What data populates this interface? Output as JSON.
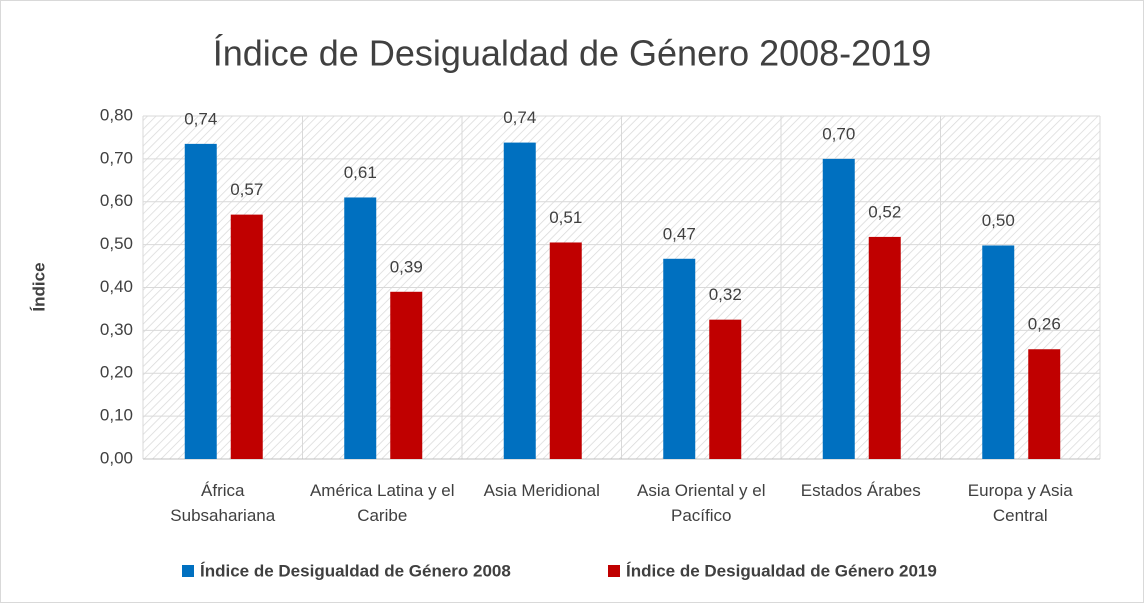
{
  "chart_data": {
    "type": "bar",
    "title": "Índice de Desigualdad de Género 2008-2019",
    "y_label": "Índice",
    "categories": [
      "África Subsahariana",
      "América Latina y el Caribe",
      "Asia Meridional",
      "Asia Oriental y el Pacífico",
      "Estados Árabes",
      "Europa y Asia Central"
    ],
    "series": [
      {
        "name": "Índice de Desigualdad de Género 2008",
        "color": "#0070c0",
        "values": [
          0.735,
          0.61,
          0.738,
          0.467,
          0.7,
          0.498
        ],
        "value_labels": [
          "0,74",
          "0,61",
          "0,74",
          "0,47",
          "0,70",
          "0,50"
        ]
      },
      {
        "name": "Índice de Desigualdad de Género 2019",
        "color": "#c00000",
        "values": [
          0.57,
          0.39,
          0.505,
          0.325,
          0.518,
          0.256
        ],
        "value_labels": [
          "0,57",
          "0,39",
          "0,51",
          "0,32",
          "0,52",
          "0,26"
        ]
      }
    ],
    "ylim": [
      0,
      0.8
    ],
    "yticks": [
      {
        "value": 0,
        "label": "0,00"
      },
      {
        "value": 0.1,
        "label": "0,10"
      },
      {
        "value": 0.2,
        "label": "0,20"
      },
      {
        "value": 0.3,
        "label": "0,30"
      },
      {
        "value": 0.4,
        "label": "0,40"
      },
      {
        "value": 0.5,
        "label": "0,50"
      },
      {
        "value": 0.6,
        "label": "0,60"
      },
      {
        "value": 0.7,
        "label": "0,70"
      },
      {
        "value": 0.8,
        "label": "0,80"
      }
    ],
    "grid": true,
    "legend": "bottom"
  }
}
